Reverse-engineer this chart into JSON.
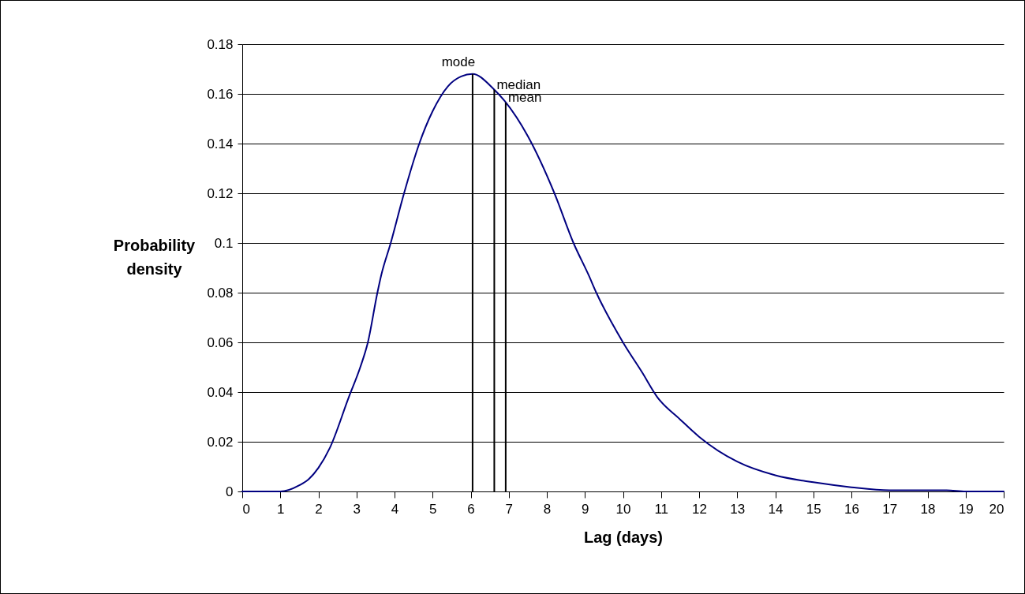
{
  "chart_data": {
    "type": "line",
    "xlabel": "Lag (days)",
    "ylabel": "Probability density",
    "x": [
      0,
      0.5,
      1,
      1.5,
      1.75,
      2,
      2.3,
      2.8,
      3.1,
      3.3,
      3.55,
      3.65,
      3.9,
      4.25,
      4.65,
      5,
      5.4,
      5.75,
      6.05,
      6.6,
      6.9,
      7.5,
      8.2,
      8.7,
      9.1,
      9.3,
      10,
      10.5,
      10.9,
      11.5,
      12,
      13,
      14,
      15,
      16,
      17,
      18.5,
      19,
      20
    ],
    "series": [
      {
        "color": "#000080",
        "values": [
          0,
          0,
          0,
          0.0025,
          0.005,
          0.0095,
          0.0175,
          0.038,
          0.05,
          0.06,
          0.08,
          0.087,
          0.1,
          0.12,
          0.14,
          0.153,
          0.163,
          0.167,
          0.168,
          0.162,
          0.157,
          0.143,
          0.12,
          0.1,
          0.087,
          0.08,
          0.06,
          0.048,
          0.038,
          0.029,
          0.022,
          0.012,
          0.0065,
          0.0037,
          0.0017,
          0.0005,
          0.0005,
          0,
          0
        ]
      }
    ],
    "xlim": [
      0,
      20
    ],
    "xticks": [
      0,
      1,
      2,
      3,
      4,
      5,
      6,
      7,
      8,
      9,
      10,
      11,
      12,
      13,
      14,
      15,
      16,
      17,
      18,
      19,
      20
    ],
    "ylim": [
      0,
      0.18
    ],
    "yticks": [
      0,
      0.02,
      0.04,
      0.06,
      0.08,
      0.1,
      0.12,
      0.14,
      0.16,
      0.18
    ],
    "grid": "y",
    "marker": "none",
    "line_style": "solid",
    "ref_lines": [
      {
        "axis": "x",
        "value": 6.05,
        "label": "mode",
        "color": "#000000"
      },
      {
        "axis": "x",
        "value": 6.62,
        "label": "median",
        "color": "#000000"
      },
      {
        "axis": "x",
        "value": 6.92,
        "label": "mean",
        "color": "#000000"
      }
    ]
  }
}
